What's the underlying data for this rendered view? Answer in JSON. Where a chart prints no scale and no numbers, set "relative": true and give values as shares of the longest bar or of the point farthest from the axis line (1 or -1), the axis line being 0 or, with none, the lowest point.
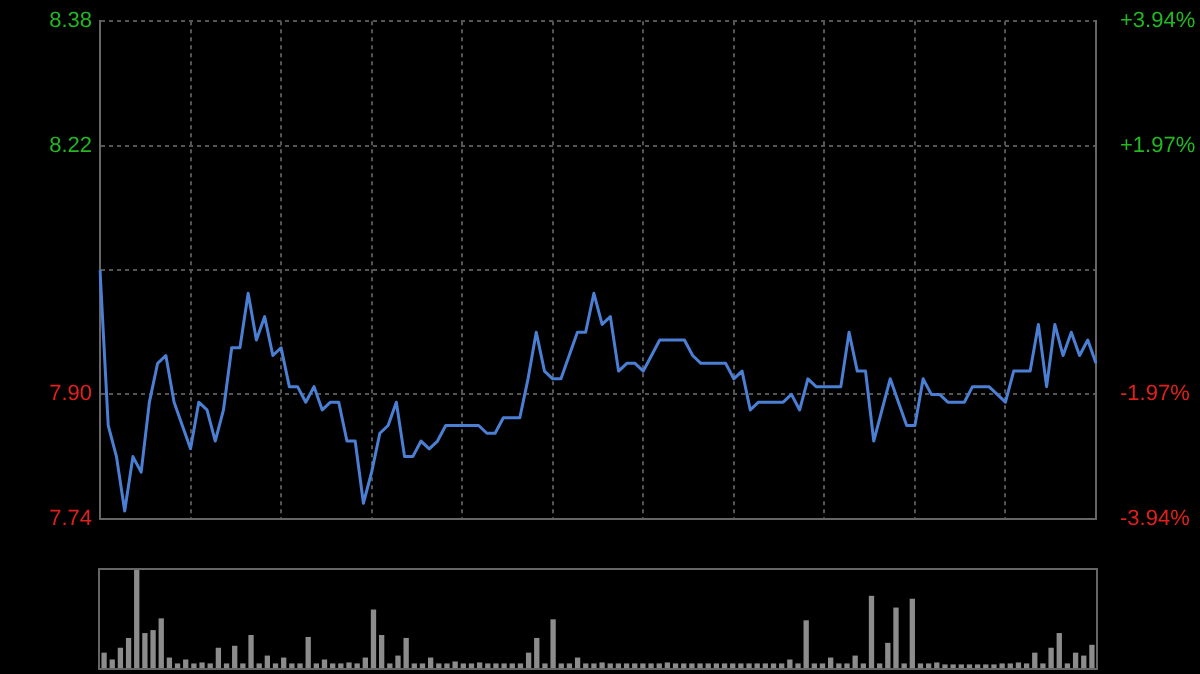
{
  "chart_data": [
    {
      "type": "line",
      "color": "#4a7fd4",
      "categories": [
        null,
        null,
        null,
        null,
        null,
        null,
        null,
        null,
        null,
        null,
        null,
        null,
        null,
        null,
        null,
        null,
        null,
        null,
        null,
        null,
        null,
        null,
        null,
        null,
        null,
        null,
        null,
        null,
        null,
        null,
        null,
        null,
        null,
        null,
        null,
        null,
        null,
        null,
        null,
        null,
        null,
        null,
        null,
        null,
        null,
        null,
        null,
        null,
        null,
        null,
        null,
        null,
        null,
        null,
        null,
        null,
        null,
        null,
        null,
        null,
        null,
        null,
        null,
        null,
        null,
        null,
        null,
        null,
        null,
        null,
        null,
        null,
        null,
        null,
        null,
        null,
        null,
        null,
        null,
        null,
        null,
        null,
        null,
        null,
        null,
        null,
        null,
        null,
        null,
        null,
        null,
        null,
        null,
        null,
        null,
        null,
        null,
        null,
        null,
        null,
        null,
        null,
        null,
        null,
        null,
        null,
        null,
        null,
        null,
        null,
        null,
        null,
        null,
        null,
        null,
        null,
        null,
        null,
        null,
        null,
        null,
        null
      ],
      "values": [
        8.06,
        7.86,
        7.82,
        7.75,
        7.82,
        7.8,
        7.89,
        7.94,
        7.95,
        7.89,
        7.86,
        7.83,
        7.89,
        7.88,
        7.84,
        7.88,
        7.96,
        7.96,
        8.03,
        7.97,
        8.0,
        7.95,
        7.96,
        7.91,
        7.91,
        7.89,
        7.91,
        7.88,
        7.89,
        7.89,
        7.84,
        7.84,
        7.76,
        7.8,
        7.85,
        7.86,
        7.89,
        7.82,
        7.82,
        7.84,
        7.83,
        7.84,
        7.86,
        7.86,
        7.86,
        7.86,
        7.86,
        7.85,
        7.85,
        7.87,
        7.87,
        7.87,
        7.92,
        7.98,
        7.93,
        7.92,
        7.92,
        7.95,
        7.98,
        7.98,
        8.03,
        7.99,
        8.0,
        7.93,
        7.94,
        7.94,
        7.93,
        7.95,
        7.97,
        7.97,
        7.97,
        7.97,
        7.95,
        7.94,
        7.94,
        7.94,
        7.94,
        7.92,
        7.93,
        7.88,
        7.89,
        7.89,
        7.89,
        7.89,
        7.9,
        7.88,
        7.92,
        7.91,
        7.91,
        7.91,
        7.91,
        7.98,
        7.93,
        7.93,
        7.84,
        7.88,
        7.92,
        7.89,
        7.86,
        7.86,
        7.92,
        7.9,
        7.9,
        7.89,
        7.89,
        7.89,
        7.91,
        7.91,
        7.91,
        7.9,
        7.89,
        7.93,
        7.93,
        7.93,
        7.99,
        7.91,
        7.99,
        7.95,
        7.98,
        7.95,
        7.97,
        7.94
      ],
      "ylim": [
        7.74,
        8.38
      ],
      "yticks": [
        7.74,
        {
          "value": 7.9,
          "label": "7.90"
        },
        {
          "value": 8.06,
          "label": null
        },
        8.22,
        8.38
      ],
      "y2lim": [
        -3.94,
        3.94
      ],
      "y2ticks": [
        {
          "value": -3.94,
          "label": "-3.94%"
        },
        {
          "value": -1.97,
          "label": "-1.97%"
        },
        {
          "value": 0,
          "label": null
        },
        {
          "value": 1.97,
          "label": "+1.97%"
        },
        {
          "value": 3.94,
          "label": "+3.94%"
        }
      ],
      "grid": true,
      "legend": false,
      "marker": "none",
      "tick_labels": "y"
    },
    {
      "type": "bar",
      "color": "#8c8c8c",
      "relative": true,
      "tick_labels": false,
      "legend": false,
      "categories": [
        null,
        null,
        null,
        null,
        null,
        null,
        null,
        null,
        null,
        null,
        null,
        null,
        null,
        null,
        null,
        null,
        null,
        null,
        null,
        null,
        null,
        null,
        null,
        null,
        null,
        null,
        null,
        null,
        null,
        null,
        null,
        null,
        null,
        null,
        null,
        null,
        null,
        null,
        null,
        null,
        null,
        null,
        null,
        null,
        null,
        null,
        null,
        null,
        null,
        null,
        null,
        null,
        null,
        null,
        null,
        null,
        null,
        null,
        null,
        null,
        null,
        null,
        null,
        null,
        null,
        null,
        null,
        null,
        null,
        null,
        null,
        null,
        null,
        null,
        null,
        null,
        null,
        null,
        null,
        null,
        null,
        null,
        null,
        null,
        null,
        null,
        null,
        null,
        null,
        null,
        null,
        null,
        null,
        null,
        null,
        null,
        null,
        null,
        null,
        null,
        null,
        null,
        null,
        null,
        null,
        null,
        null,
        null,
        null,
        null,
        null,
        null,
        null,
        null,
        null,
        null,
        null,
        null,
        null,
        null,
        null,
        null
      ],
      "values": [
        0.15,
        0.08,
        0.2,
        0.3,
        1.0,
        0.35,
        0.38,
        0.5,
        0.1,
        0.04,
        0.08,
        0.04,
        0.05,
        0.04,
        0.2,
        0.04,
        0.22,
        0.04,
        0.33,
        0.04,
        0.12,
        0.04,
        0.1,
        0.04,
        0.04,
        0.31,
        0.04,
        0.08,
        0.04,
        0.04,
        0.05,
        0.04,
        0.1,
        0.59,
        0.33,
        0.04,
        0.12,
        0.3,
        0.04,
        0.04,
        0.1,
        0.04,
        0.04,
        0.06,
        0.04,
        0.04,
        0.05,
        0.04,
        0.04,
        0.04,
        0.04,
        0.04,
        0.15,
        0.3,
        0.04,
        0.49,
        0.04,
        0.04,
        0.1,
        0.04,
        0.04,
        0.05,
        0.04,
        0.04,
        0.04,
        0.04,
        0.04,
        0.04,
        0.04,
        0.05,
        0.04,
        0.04,
        0.04,
        0.04,
        0.04,
        0.04,
        0.04,
        0.04,
        0.04,
        0.04,
        0.04,
        0.04,
        0.04,
        0.04,
        0.08,
        0.04,
        0.48,
        0.04,
        0.04,
        0.1,
        0.04,
        0.04,
        0.12,
        0.04,
        0.73,
        0.04,
        0.25,
        0.61,
        0.04,
        0.7,
        0.04,
        0.04,
        0.05,
        0.03,
        0.03,
        0.03,
        0.03,
        0.03,
        0.03,
        0.03,
        0.04,
        0.04,
        0.05,
        0.04,
        0.15,
        0.04,
        0.2,
        0.35,
        0.04,
        0.15,
        0.12,
        0.23
      ]
    }
  ]
}
